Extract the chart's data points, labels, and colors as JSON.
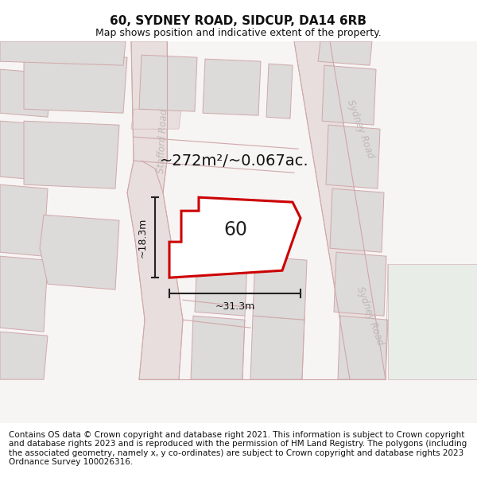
{
  "title": "60, SYDNEY ROAD, SIDCUP, DA14 6RB",
  "subtitle": "Map shows position and indicative extent of the property.",
  "area_text": "~272m²/~0.067ac.",
  "property_label": "60",
  "dim_width": "~31.3m",
  "dim_height": "~18.3m",
  "footer": "Contains OS data © Crown copyright and database right 2021. This information is subject to Crown copyright and database rights 2023 and is reproduced with the permission of HM Land Registry. The polygons (including the associated geometry, namely x, y co-ordinates) are subject to Crown copyright and database rights 2023 Ordnance Survey 100026316.",
  "bg_color": "#f7f4f4",
  "road_fill": "#e8dede",
  "plot_fill": "#dddada",
  "plot_edge": "#d0a8a8",
  "property_fill": "#ffffff",
  "property_edge": "#cc0000",
  "dim_color": "#222222",
  "title_fontsize": 11,
  "subtitle_fontsize": 9,
  "footer_fontsize": 7.5,
  "label_fontsize": 17,
  "area_fontsize": 14,
  "road_label_color": "#c0b8b8",
  "road_label_size": 8.5,
  "green_fill": "#e8ede8"
}
